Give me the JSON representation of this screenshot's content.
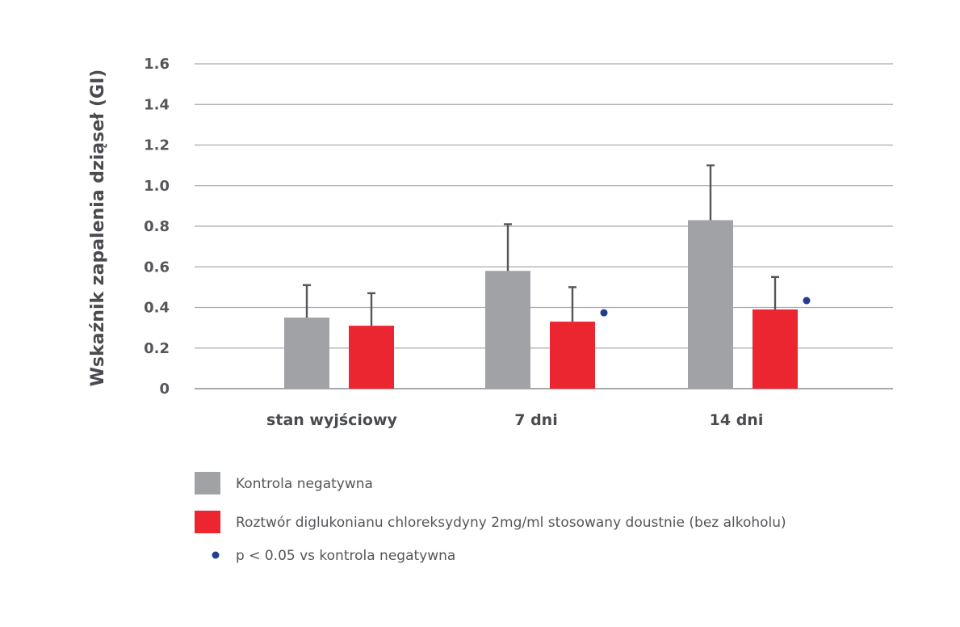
{
  "chart_data": {
    "type": "bar",
    "ylabel": "Wskaźnik zapalenia dziąseł (GI)",
    "xlabel": "",
    "ylim": [
      0,
      1.6
    ],
    "yticks": [
      0,
      0.2,
      0.4,
      0.6,
      0.8,
      1.0,
      1.2,
      1.4,
      1.6
    ],
    "ytick_labels": [
      "0",
      "0.2",
      "0.4",
      "0.6",
      "0.8",
      "1.0",
      "1.2",
      "1.4",
      "1.6"
    ],
    "grid": true,
    "categories": [
      "stan wyjściowy",
      "7 dni",
      "14 dni"
    ],
    "series": [
      {
        "name": "Kontrola negatywna",
        "color": "#a1a2a6",
        "values": [
          0.35,
          0.58,
          0.83
        ],
        "error_upper": [
          0.51,
          0.81,
          1.1
        ]
      },
      {
        "name": "Roztwór diglukonianu chloreksydyny 2mg/ml stosowany doustnie (bez alkoholu)",
        "color": "#ec2630",
        "values": [
          0.31,
          0.33,
          0.39
        ],
        "error_upper": [
          0.47,
          0.5,
          0.55
        ],
        "significant": [
          false,
          true,
          true
        ]
      }
    ],
    "significance_marker": {
      "label": "p < 0.05 vs kontrola negatywna",
      "color": "#233e90"
    },
    "legend_position": "bottom-left",
    "axis_color": "#8a8b8f",
    "gridline_color": "#a9aaae",
    "errorbar_color": "#55565a"
  }
}
